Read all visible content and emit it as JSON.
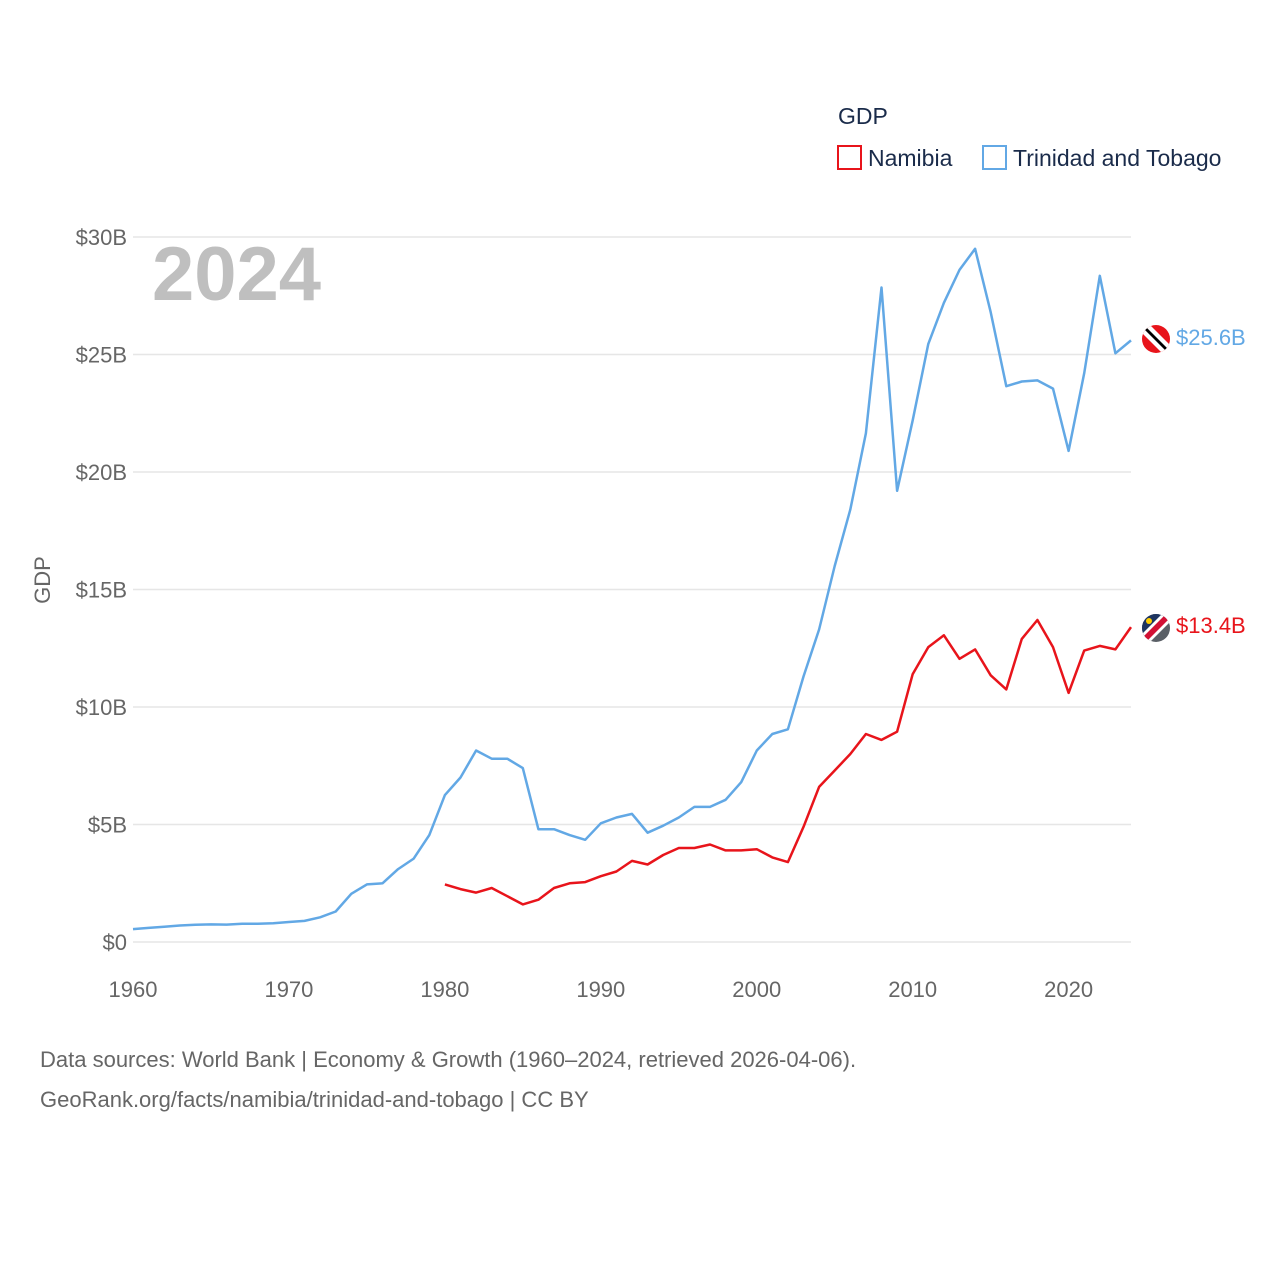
{
  "chart_data": {
    "type": "line",
    "title": "",
    "big_year_label": "2024",
    "xlabel": "",
    "ylabel": "GDP",
    "legend_title": "GDP",
    "legend_placement": "top-right",
    "xlim": [
      1960,
      2024
    ],
    "ylim": [
      0,
      30
    ],
    "x_ticks": [
      1960,
      1970,
      1980,
      1990,
      2000,
      2010,
      2020
    ],
    "y_ticks": [
      {
        "value": 0,
        "label": "$0"
      },
      {
        "value": 5,
        "label": "$5B"
      },
      {
        "value": 10,
        "label": "$10B"
      },
      {
        "value": 15,
        "label": "$15B"
      },
      {
        "value": 20,
        "label": "$20B"
      },
      {
        "value": 25,
        "label": "$25B"
      },
      {
        "value": 30,
        "label": "$30B"
      }
    ],
    "grid": true,
    "series": [
      {
        "name": "Namibia",
        "color": "#e8141b",
        "end_label": "$13.4B",
        "flag": "namibia-flag",
        "x": [
          1980,
          1981,
          1982,
          1983,
          1984,
          1985,
          1986,
          1987,
          1988,
          1989,
          1990,
          1991,
          1992,
          1993,
          1994,
          1995,
          1996,
          1997,
          1998,
          1999,
          2000,
          2001,
          2002,
          2003,
          2004,
          2005,
          2006,
          2007,
          2008,
          2009,
          2010,
          2011,
          2012,
          2013,
          2014,
          2015,
          2016,
          2017,
          2018,
          2019,
          2020,
          2021,
          2022,
          2023,
          2024
        ],
        "values": [
          2.45,
          2.25,
          2.1,
          2.3,
          1.95,
          1.6,
          1.8,
          2.3,
          2.5,
          2.55,
          2.8,
          3.0,
          3.45,
          3.3,
          3.7,
          4.0,
          4.0,
          4.15,
          3.9,
          3.9,
          3.95,
          3.6,
          3.4,
          4.9,
          6.6,
          7.3,
          8.0,
          8.85,
          8.6,
          8.95,
          11.4,
          12.55,
          13.05,
          12.05,
          12.45,
          11.35,
          10.75,
          12.9,
          13.7,
          12.55,
          10.6,
          12.4,
          12.6,
          12.45,
          13.4
        ]
      },
      {
        "name": "Trinidad and Tobago",
        "color": "#62a8e5",
        "end_label": "$25.6B",
        "flag": "trinidad-flag",
        "x": [
          1960,
          1961,
          1962,
          1963,
          1964,
          1965,
          1966,
          1967,
          1968,
          1969,
          1970,
          1971,
          1972,
          1973,
          1974,
          1975,
          1976,
          1977,
          1978,
          1979,
          1980,
          1981,
          1982,
          1983,
          1984,
          1985,
          1986,
          1987,
          1988,
          1989,
          1990,
          1991,
          1992,
          1993,
          1994,
          1995,
          1996,
          1997,
          1998,
          1999,
          2000,
          2001,
          2002,
          2003,
          2004,
          2005,
          2006,
          2007,
          2008,
          2009,
          2010,
          2011,
          2012,
          2013,
          2014,
          2015,
          2016,
          2017,
          2018,
          2019,
          2020,
          2021,
          2022,
          2023,
          2024
        ],
        "values": [
          0.55,
          0.6,
          0.65,
          0.7,
          0.73,
          0.75,
          0.74,
          0.78,
          0.78,
          0.8,
          0.85,
          0.9,
          1.05,
          1.3,
          2.05,
          2.45,
          2.5,
          3.1,
          3.55,
          4.55,
          6.25,
          7.0,
          8.15,
          7.8,
          7.8,
          7.4,
          4.8,
          4.8,
          4.55,
          4.35,
          5.05,
          5.3,
          5.45,
          4.65,
          4.95,
          5.3,
          5.75,
          5.75,
          6.05,
          6.8,
          8.15,
          8.85,
          9.05,
          11.3,
          13.3,
          16.0,
          18.4,
          21.65,
          27.85,
          19.2,
          22.2,
          25.45,
          27.2,
          28.6,
          29.5,
          26.8,
          23.65,
          23.85,
          23.9,
          23.55,
          20.9,
          24.2,
          28.35,
          25.05,
          25.6
        ]
      }
    ]
  },
  "footer": {
    "line1": "Data sources: World Bank | Economy & Growth (1960–2024, retrieved 2026-04-06).",
    "line2": "GeoRank.org/facts/namibia/trinidad-and-tobago | CC BY"
  }
}
